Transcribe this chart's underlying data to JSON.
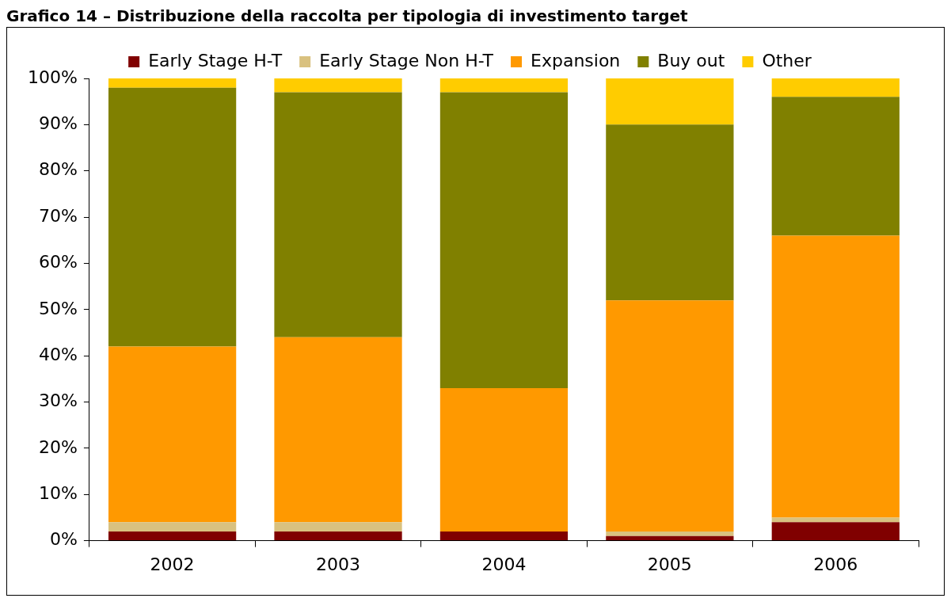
{
  "chart_data": {
    "type": "bar",
    "title": "Grafico 14 – Distribuzione della raccolta per tipologia di investimento target",
    "categories": [
      "2002",
      "2003",
      "2004",
      "2005",
      "2006"
    ],
    "series": [
      {
        "name": "Early Stage H-T",
        "color": "#800000",
        "values": [
          2,
          2,
          2,
          1,
          4
        ]
      },
      {
        "name": "Early Stage Non H-T",
        "color": "#d9c17f",
        "values": [
          2,
          2,
          0,
          1,
          1
        ]
      },
      {
        "name": "Expansion",
        "color": "#ff9900",
        "values": [
          38,
          40,
          31,
          50,
          61
        ]
      },
      {
        "name": "Buy out",
        "color": "#808000",
        "values": [
          56,
          53,
          64,
          38,
          30
        ]
      },
      {
        "name": "Other",
        "color": "#ffcc00",
        "values": [
          2,
          3,
          3,
          10,
          4
        ]
      }
    ],
    "stacked": true,
    "ylim": [
      0,
      100
    ],
    "yticks": [
      {
        "value": 0,
        "label": "0%"
      },
      {
        "value": 10,
        "label": "10%"
      },
      {
        "value": 20,
        "label": "20%"
      },
      {
        "value": 30,
        "label": "30%"
      },
      {
        "value": 40,
        "label": "40%"
      },
      {
        "value": 50,
        "label": "50%"
      },
      {
        "value": 60,
        "label": "60%"
      },
      {
        "value": 70,
        "label": "70%"
      },
      {
        "value": 80,
        "label": "80%"
      },
      {
        "value": 90,
        "label": "90%"
      },
      {
        "value": 100,
        "label": "100%"
      }
    ],
    "grid": false,
    "legend": "top"
  }
}
